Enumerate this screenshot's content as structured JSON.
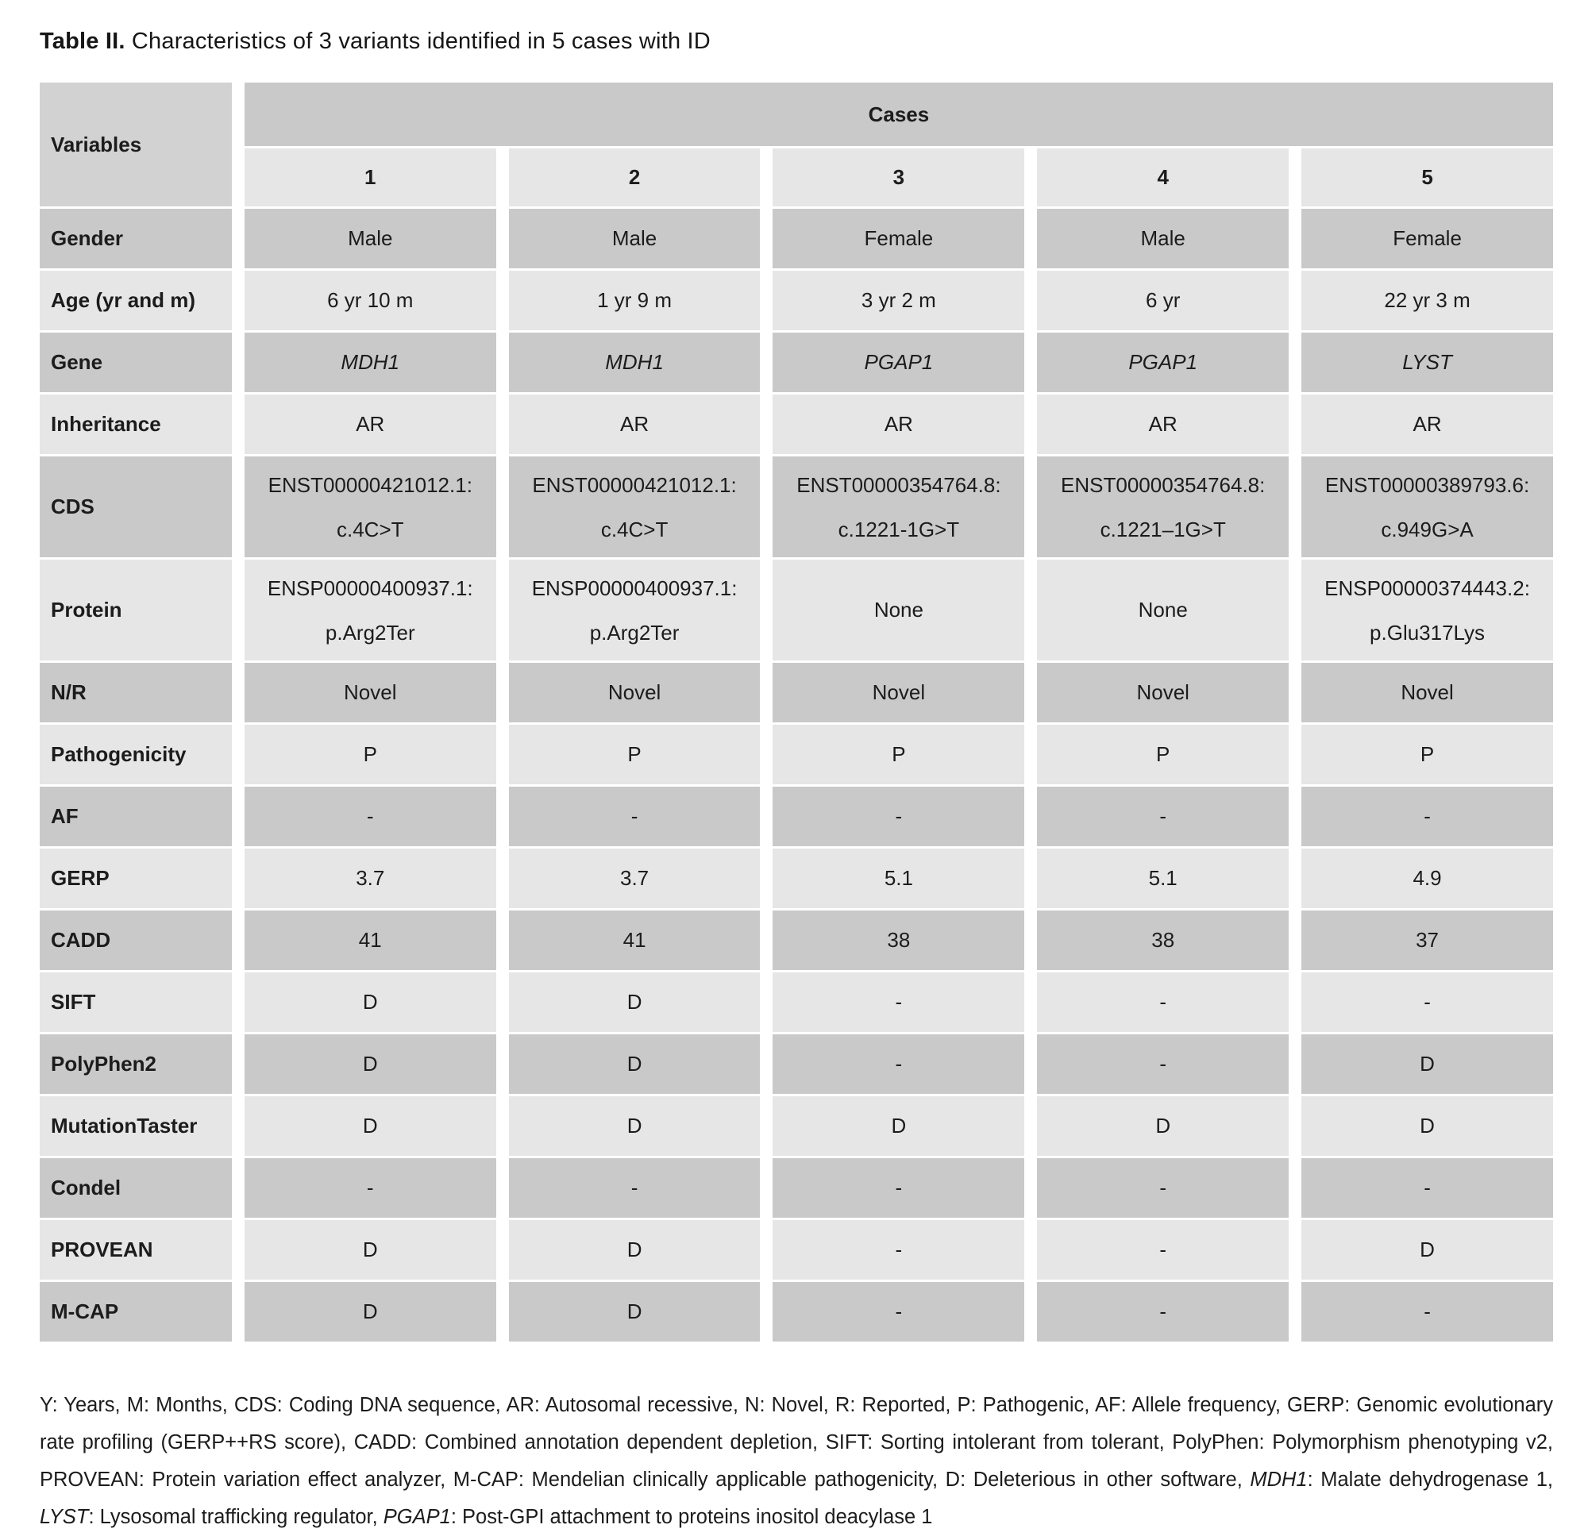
{
  "title": {
    "label": "Table II.",
    "caption": "Characteristics of 3 variants identified in 5 cases with ID"
  },
  "table": {
    "corner_header": "Variables",
    "cases_header": "Cases",
    "case_numbers": [
      "1",
      "2",
      "3",
      "4",
      "5"
    ],
    "rows": [
      {
        "label": "Gender",
        "cells": [
          "Male",
          "Male",
          "Female",
          "Male",
          "Female"
        ]
      },
      {
        "label": "Age (yr and m)",
        "cells": [
          "6 yr 10 m",
          "1 yr 9 m",
          "3 yr 2 m",
          "6 yr",
          "22 yr 3 m"
        ]
      },
      {
        "label": "Gene",
        "italic": true,
        "cells": [
          "MDH1",
          "MDH1",
          "PGAP1",
          "PGAP1",
          "LYST"
        ]
      },
      {
        "label": "Inheritance",
        "cells": [
          "AR",
          "AR",
          "AR",
          "AR",
          "AR"
        ]
      },
      {
        "label": "CDS",
        "tall": true,
        "cells": [
          [
            "ENST00000421012.1:",
            "c.4C>T"
          ],
          [
            "ENST00000421012.1:",
            "c.4C>T"
          ],
          [
            "ENST00000354764.8:",
            "c.1221-1G>T"
          ],
          [
            "ENST00000354764.8:",
            "c.1221–1G>T"
          ],
          [
            "ENST00000389793.6:",
            "c.949G>A"
          ]
        ]
      },
      {
        "label": "Protein",
        "tall": true,
        "cells": [
          [
            "ENSP00000400937.1:",
            "p.Arg2Ter"
          ],
          [
            "ENSP00000400937.1:",
            "p.Arg2Ter"
          ],
          "None",
          "None",
          [
            "ENSP00000374443.2:",
            "p.Glu317Lys"
          ]
        ]
      },
      {
        "label": "N/R",
        "cells": [
          "Novel",
          "Novel",
          "Novel",
          "Novel",
          "Novel"
        ]
      },
      {
        "label": "Pathogenicity",
        "cells": [
          "P",
          "P",
          "P",
          "P",
          "P"
        ]
      },
      {
        "label": "AF",
        "cells": [
          "-",
          "-",
          "-",
          "-",
          "-"
        ]
      },
      {
        "label": "GERP",
        "cells": [
          "3.7",
          "3.7",
          "5.1",
          "5.1",
          "4.9"
        ]
      },
      {
        "label": "CADD",
        "cells": [
          "41",
          "41",
          "38",
          "38",
          "37"
        ]
      },
      {
        "label": "SIFT",
        "cells": [
          "D",
          "D",
          "-",
          "-",
          "-"
        ]
      },
      {
        "label": "PolyPhen2",
        "cells": [
          "D",
          "D",
          "-",
          "-",
          "D"
        ]
      },
      {
        "label": "MutationTaster",
        "cells": [
          "D",
          "D",
          "D",
          "D",
          "D"
        ]
      },
      {
        "label": "Condel",
        "cells": [
          "-",
          "-",
          "-",
          "-",
          "-"
        ]
      },
      {
        "label": "PROVEAN",
        "cells": [
          "D",
          "D",
          "-",
          "-",
          "D"
        ]
      },
      {
        "label": "M-CAP",
        "cells": [
          "D",
          "D",
          "-",
          "-",
          "-"
        ]
      }
    ]
  },
  "footnote": {
    "segments": [
      {
        "text": "Y: Years, M: Months, CDS: Coding DNA sequence, AR: Autosomal recessive, N: Novel, R: Reported, P: Pathogenic, AF: Allele frequency, GERP: Genomic evolutionary rate profiling (GERP++RS score), CADD: Combined annotation dependent depletion, SIFT: Sorting intolerant from tolerant, PolyPhen: Polymorphism phenotyping v2, PROVEAN: Protein variation effect analyzer, M-CAP: Mendelian clinically applicable pathogenicity, D: Deleterious in other software, ",
        "italic": false
      },
      {
        "text": "MDH1",
        "italic": true
      },
      {
        "text": ": Malate dehydrogenase 1, ",
        "italic": false
      },
      {
        "text": "LYST",
        "italic": true
      },
      {
        "text": ": Lysosomal trafficking regulator, ",
        "italic": false
      },
      {
        "text": "PGAP1",
        "italic": true
      },
      {
        "text": ": Post-GPI attachment to proteins inositol deacylase 1",
        "italic": false
      }
    ]
  },
  "colors": {
    "row_dark": "#c9c9c9",
    "row_light": "#e6e6e6",
    "corner_header_bg": "#d2d2d2",
    "cases_band_bg": "#c9c9c9",
    "case_number_bg": "#e6e6e6",
    "text": "#1c1c1c",
    "background": "#ffffff"
  }
}
